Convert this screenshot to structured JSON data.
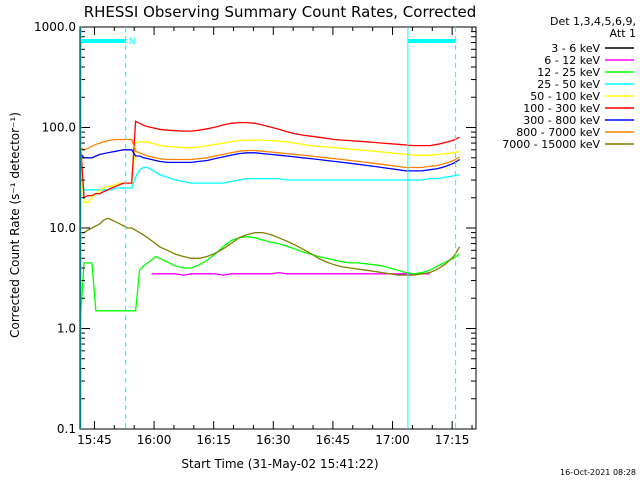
{
  "chart_data": {
    "type": "line",
    "title": "RHESSI Observing Summary Count Rates, Corrected",
    "xlabel": "Start Time (31-May-02 15:41:22)",
    "ylabel": "Corrected Count Rate (s⁻¹ detector⁻¹)",
    "yscale": "log",
    "ylim": [
      0.1,
      1000
    ],
    "xlim": [
      "15:41:22",
      "17:21:00"
    ],
    "x_ticks": [
      "15:45",
      "16:00",
      "16:15",
      "16:30",
      "16:45",
      "17:00",
      "17:15"
    ],
    "y_ticks": [
      "0.1",
      "1.0",
      "10.0",
      "100.0",
      "1000.0"
    ],
    "legend_header": [
      "Det 1,3,4,5,6,9,",
      "Att 1"
    ],
    "legend_position": "right",
    "x_minutes": [
      0,
      1,
      2,
      3,
      4,
      5,
      6,
      7,
      8,
      9,
      10,
      11,
      12,
      13,
      14,
      15,
      16,
      17,
      18,
      19,
      20,
      22,
      24,
      26,
      28,
      30,
      32,
      34,
      36,
      38,
      40,
      42,
      44,
      46,
      48,
      50,
      52,
      54,
      56,
      58,
      60,
      62,
      64,
      66,
      68,
      70,
      72,
      74,
      76,
      78,
      80,
      82,
      84,
      86,
      88,
      90,
      92,
      94,
      95.5
    ],
    "series": [
      {
        "name": "3 - 6 keV",
        "color": "#000000",
        "values": [
          null,
          null,
          null,
          null,
          null,
          null,
          null,
          null,
          null,
          null,
          null,
          null,
          null,
          null,
          null,
          null,
          null,
          null,
          null,
          null,
          null,
          null,
          null,
          null,
          null,
          null,
          null,
          null,
          null,
          null,
          null,
          null,
          null,
          null,
          null,
          null,
          null,
          null,
          null,
          null,
          null,
          null,
          null,
          null,
          null,
          null,
          null,
          null,
          null,
          null,
          null,
          null,
          null,
          null,
          null,
          null,
          null,
          null,
          null
        ]
      },
      {
        "name": "6 - 12 keV",
        "color": "#ff00ff",
        "values": [
          null,
          null,
          null,
          null,
          null,
          null,
          null,
          null,
          null,
          null,
          null,
          null,
          null,
          null,
          null,
          null,
          null,
          null,
          3.5,
          3.5,
          3.5,
          3.5,
          3.5,
          3.4,
          3.5,
          3.5,
          3.5,
          3.5,
          3.4,
          3.5,
          3.5,
          3.5,
          3.5,
          3.5,
          3.5,
          3.6,
          3.5,
          3.5,
          3.5,
          3.5,
          3.5,
          3.5,
          3.5,
          3.5,
          3.5,
          3.5,
          3.5,
          3.5,
          3.5,
          3.5,
          3.5,
          3.5,
          3.5,
          3.5,
          3.5,
          null,
          null,
          null,
          null
        ]
      },
      {
        "name": "12 - 25 keV",
        "color": "#00ff00",
        "values": [
          1.0,
          4.5,
          4.5,
          4.5,
          1.5,
          1.5,
          1.5,
          1.5,
          1.5,
          1.5,
          1.5,
          1.5,
          1.5,
          1.5,
          1.5,
          3.8,
          4.2,
          4.5,
          4.8,
          5.2,
          5.0,
          4.6,
          4.2,
          4.0,
          4.0,
          4.3,
          4.8,
          5.5,
          6.5,
          7.5,
          8.0,
          8.2,
          8.0,
          7.6,
          7.2,
          7.0,
          6.6,
          6.2,
          5.8,
          5.5,
          5.2,
          5.0,
          4.8,
          4.6,
          4.5,
          4.5,
          4.4,
          4.3,
          4.2,
          4.0,
          3.8,
          3.6,
          3.5,
          3.6,
          3.8,
          4.2,
          4.6,
          5.0,
          5.5
        ]
      },
      {
        "name": "25 - 50 keV",
        "color": "#00ffff",
        "values": [
          45,
          24,
          24,
          24,
          24,
          24,
          24,
          24,
          24,
          25,
          25,
          25,
          25,
          25,
          32,
          38,
          40,
          40,
          38,
          36,
          34,
          32,
          30,
          29,
          28,
          28,
          28,
          28,
          28,
          29,
          30,
          31,
          31,
          31,
          31,
          31,
          30,
          30,
          30,
          30,
          30,
          30,
          30,
          30,
          30,
          30,
          30,
          30,
          30,
          30,
          30,
          30,
          30,
          30,
          31,
          31,
          32,
          33,
          34
        ]
      },
      {
        "name": "50 - 100 keV",
        "color": "#ffff00",
        "values": [
          52,
          18,
          18,
          20,
          22,
          24,
          25,
          26,
          26,
          27,
          28,
          28,
          28,
          28,
          70,
          72,
          72,
          72,
          70,
          68,
          66,
          65,
          64,
          63,
          63,
          64,
          66,
          68,
          70,
          72,
          74,
          75,
          75,
          75,
          74,
          73,
          72,
          70,
          68,
          66,
          65,
          64,
          63,
          62,
          61,
          60,
          59,
          58,
          57,
          56,
          55,
          54,
          53,
          53,
          53,
          54,
          55,
          56,
          58
        ]
      },
      {
        "name": "100 - 300 keV",
        "color": "#ff0000",
        "values": [
          85,
          20,
          21,
          21,
          22,
          22,
          23,
          24,
          25,
          26,
          27,
          28,
          28,
          28,
          115,
          110,
          105,
          102,
          100,
          98,
          96,
          94,
          93,
          92,
          92,
          94,
          97,
          101,
          106,
          110,
          112,
          112,
          110,
          106,
          101,
          96,
          91,
          87,
          84,
          82,
          80,
          78,
          76,
          75,
          74,
          73,
          72,
          71,
          70,
          69,
          68,
          67,
          66,
          66,
          66,
          68,
          71,
          75,
          80
        ]
      },
      {
        "name": "300 - 800 keV",
        "color": "#0000ff",
        "values": [
          56,
          50,
          50,
          50,
          52,
          54,
          55,
          56,
          57,
          58,
          59,
          60,
          60,
          60,
          52,
          52,
          50,
          49,
          48,
          47,
          46,
          45,
          45,
          45,
          45,
          46,
          47,
          49,
          51,
          53,
          55,
          56,
          56,
          55,
          54,
          53,
          52,
          51,
          50,
          49,
          48,
          47,
          46,
          45,
          44,
          43,
          42,
          41,
          40,
          39,
          38,
          37,
          37,
          37,
          38,
          39,
          41,
          44,
          48
        ]
      },
      {
        "name": "800 - 7000 keV",
        "color": "#ff8000",
        "values": [
          64,
          60,
          62,
          65,
          68,
          70,
          72,
          74,
          75,
          76,
          76,
          76,
          76,
          76,
          58,
          56,
          54,
          52,
          51,
          50,
          49,
          48,
          48,
          48,
          48,
          49,
          50,
          52,
          54,
          56,
          58,
          59,
          59,
          58,
          57,
          56,
          55,
          54,
          53,
          52,
          51,
          50,
          49,
          48,
          47,
          46,
          45,
          44,
          43,
          42,
          41,
          40,
          40,
          40,
          41,
          42,
          44,
          47,
          51
        ]
      },
      {
        "name": "7000 - 15000 keV",
        "color": "#808000",
        "values": [
          9.0,
          9.0,
          9.5,
          10.0,
          10.5,
          11.0,
          12.0,
          12.5,
          12.0,
          11.5,
          11.0,
          10.5,
          10.0,
          10.0,
          9.5,
          9.0,
          8.5,
          8.0,
          7.5,
          7.0,
          6.5,
          6.0,
          5.5,
          5.2,
          5.0,
          5.0,
          5.2,
          5.6,
          6.2,
          7.0,
          8.0,
          8.6,
          9.0,
          9.0,
          8.6,
          8.0,
          7.4,
          6.8,
          6.2,
          5.6,
          5.0,
          4.6,
          4.3,
          4.1,
          4.0,
          3.9,
          3.8,
          3.7,
          3.6,
          3.5,
          3.4,
          3.4,
          3.4,
          3.5,
          3.6,
          3.9,
          4.4,
          5.2,
          6.5
        ]
      }
    ],
    "annotations": {
      "saa_marker": "N",
      "timestamp": "16-Oct-2021 08:28"
    }
  },
  "colors": {
    "background": "#ffffff",
    "axes": "#000000",
    "night_bar": "#00ffff"
  }
}
